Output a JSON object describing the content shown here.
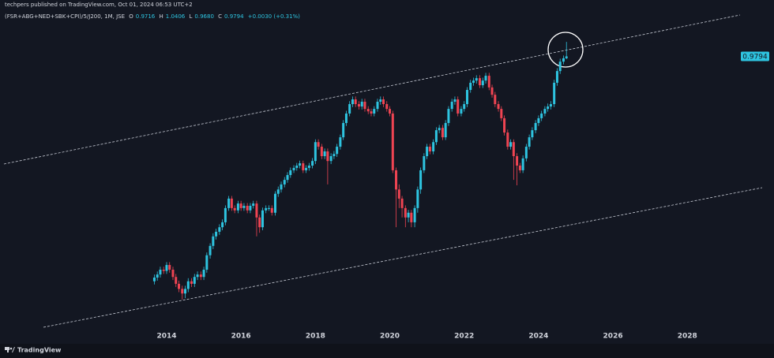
{
  "header": {
    "publisher": "techpers published on TradingView.com, Oct 01, 2024 06:53 UTC+2",
    "symbol": "(FSR+ABG+NED+SBK+CPI)/5/J200, 1M, JSE",
    "ohlc": [
      {
        "key": "O",
        "value": "0.9716"
      },
      {
        "key": "H",
        "value": "1.0406"
      },
      {
        "key": "L",
        "value": "0.9680"
      },
      {
        "key": "C",
        "value": "0.9794"
      }
    ],
    "change": "+0.0030 (+0.31%)"
  },
  "chart_data": {
    "type": "candlestick",
    "log_scale": true,
    "up_color": "#2ec4e0",
    "down_color": "#ef4452",
    "xlim": [
      2009.52,
      2030.33
    ],
    "xticks": [
      2014,
      2016,
      2018,
      2020,
      2022,
      2024,
      2026,
      2028
    ],
    "ylim": [
      0.31,
      1.24
    ],
    "x": [
      2013.67,
      2013.75,
      2013.83,
      2013.92,
      2014,
      2014.08,
      2014.17,
      2014.25,
      2014.33,
      2014.42,
      2014.5,
      2014.58,
      2014.67,
      2014.75,
      2014.83,
      2014.92,
      2015,
      2015.08,
      2015.17,
      2015.25,
      2015.33,
      2015.42,
      2015.5,
      2015.58,
      2015.67,
      2015.75,
      2015.83,
      2015.92,
      2016,
      2016.08,
      2016.17,
      2016.25,
      2016.33,
      2016.42,
      2016.5,
      2016.58,
      2016.67,
      2016.75,
      2016.83,
      2016.92,
      2017,
      2017.08,
      2017.17,
      2017.25,
      2017.33,
      2017.42,
      2017.5,
      2017.58,
      2017.67,
      2017.75,
      2017.83,
      2017.92,
      2018,
      2018.08,
      2018.17,
      2018.25,
      2018.33,
      2018.42,
      2018.5,
      2018.58,
      2018.67,
      2018.75,
      2018.83,
      2018.92,
      2019,
      2019.08,
      2019.17,
      2019.25,
      2019.33,
      2019.42,
      2019.5,
      2019.58,
      2019.67,
      2019.75,
      2019.83,
      2019.92,
      2020,
      2020.08,
      2020.17,
      2020.25,
      2020.33,
      2020.42,
      2020.5,
      2020.58,
      2020.67,
      2020.75,
      2020.83,
      2020.92,
      2021,
      2021.08,
      2021.17,
      2021.25,
      2021.33,
      2021.42,
      2021.5,
      2021.58,
      2021.67,
      2021.75,
      2021.83,
      2021.92,
      2022,
      2022.08,
      2022.17,
      2022.25,
      2022.33,
      2022.42,
      2022.5,
      2022.58,
      2022.67,
      2022.75,
      2022.83,
      2022.92,
      2023,
      2023.08,
      2023.17,
      2023.25,
      2023.33,
      2023.42,
      2023.5,
      2023.58,
      2023.67,
      2023.75,
      2023.83,
      2023.92,
      2024,
      2024.08,
      2024.17,
      2024.25,
      2024.33,
      2024.42,
      2024.5,
      2024.58,
      2024.67,
      2024.75
    ],
    "open": [
      0.382,
      0.388,
      0.393,
      0.401,
      0.399,
      0.409,
      0.401,
      0.389,
      0.378,
      0.37,
      0.363,
      0.37,
      0.382,
      0.378,
      0.389,
      0.393,
      0.389,
      0.401,
      0.426,
      0.443,
      0.461,
      0.47,
      0.479,
      0.489,
      0.519,
      0.54,
      0.519,
      0.514,
      0.529,
      0.519,
      0.524,
      0.514,
      0.524,
      0.529,
      0.499,
      0.479,
      0.514,
      0.519,
      0.519,
      0.509,
      0.551,
      0.561,
      0.573,
      0.584,
      0.596,
      0.608,
      0.614,
      0.62,
      0.626,
      0.608,
      0.614,
      0.62,
      0.632,
      0.684,
      0.671,
      0.645,
      0.658,
      0.632,
      0.645,
      0.651,
      0.671,
      0.698,
      0.741,
      0.771,
      0.802,
      0.818,
      0.802,
      0.794,
      0.81,
      0.786,
      0.778,
      0.771,
      0.786,
      0.81,
      0.818,
      0.802,
      0.786,
      0.771,
      0.608,
      0.561,
      0.54,
      0.519,
      0.499,
      0.509,
      0.489,
      0.519,
      0.561,
      0.608,
      0.645,
      0.671,
      0.658,
      0.684,
      0.719,
      0.726,
      0.698,
      0.741,
      0.786,
      0.81,
      0.818,
      0.771,
      0.786,
      0.802,
      0.851,
      0.877,
      0.885,
      0.894,
      0.868,
      0.885,
      0.903,
      0.86,
      0.834,
      0.802,
      0.786,
      0.756,
      0.712,
      0.671,
      0.684,
      0.645,
      0.62,
      0.608,
      0.639,
      0.671,
      0.698,
      0.719,
      0.741,
      0.756,
      0.771,
      0.786,
      0.794,
      0.802,
      0.877,
      0.921,
      0.958,
      0.9716
    ],
    "high": [
      0.393,
      0.398,
      0.406,
      0.406,
      0.414,
      0.414,
      0.406,
      0.394,
      0.383,
      0.375,
      0.375,
      0.387,
      0.387,
      0.394,
      0.398,
      0.398,
      0.406,
      0.431,
      0.448,
      0.467,
      0.476,
      0.485,
      0.495,
      0.525,
      0.546,
      0.546,
      0.525,
      0.535,
      0.535,
      0.53,
      0.53,
      0.53,
      0.535,
      0.535,
      0.505,
      0.52,
      0.525,
      0.525,
      0.525,
      0.557,
      0.568,
      0.58,
      0.591,
      0.603,
      0.615,
      0.621,
      0.627,
      0.633,
      0.633,
      0.621,
      0.627,
      0.64,
      0.692,
      0.692,
      0.679,
      0.666,
      0.666,
      0.653,
      0.659,
      0.679,
      0.706,
      0.75,
      0.78,
      0.812,
      0.828,
      0.828,
      0.812,
      0.82,
      0.82,
      0.795,
      0.787,
      0.795,
      0.82,
      0.828,
      0.828,
      0.812,
      0.795,
      0.78,
      0.615,
      0.573,
      0.546,
      0.525,
      0.515,
      0.515,
      0.525,
      0.568,
      0.615,
      0.653,
      0.679,
      0.679,
      0.692,
      0.728,
      0.735,
      0.735,
      0.75,
      0.795,
      0.82,
      0.828,
      0.828,
      0.795,
      0.812,
      0.861,
      0.888,
      0.896,
      0.905,
      0.905,
      0.896,
      0.914,
      0.914,
      0.87,
      0.844,
      0.812,
      0.795,
      0.765,
      0.721,
      0.692,
      0.692,
      0.653,
      0.627,
      0.647,
      0.679,
      0.706,
      0.728,
      0.75,
      0.765,
      0.78,
      0.795,
      0.804,
      0.812,
      0.888,
      0.932,
      0.97,
      0.983,
      1.0406
    ],
    "low": [
      0.377,
      0.383,
      0.388,
      0.394,
      0.394,
      0.396,
      0.384,
      0.373,
      0.365,
      0.354,
      0.356,
      0.365,
      0.373,
      0.373,
      0.384,
      0.384,
      0.384,
      0.396,
      0.42,
      0.437,
      0.455,
      0.464,
      0.473,
      0.483,
      0.513,
      0.513,
      0.508,
      0.508,
      0.513,
      0.513,
      0.508,
      0.508,
      0.518,
      0.461,
      0.468,
      0.473,
      0.508,
      0.513,
      0.503,
      0.503,
      0.544,
      0.554,
      0.566,
      0.577,
      0.589,
      0.601,
      0.607,
      0.613,
      0.601,
      0.601,
      0.607,
      0.613,
      0.624,
      0.663,
      0.637,
      0.637,
      0.573,
      0.624,
      0.637,
      0.643,
      0.663,
      0.69,
      0.732,
      0.762,
      0.792,
      0.792,
      0.784,
      0.784,
      0.777,
      0.769,
      0.762,
      0.762,
      0.777,
      0.8,
      0.792,
      0.777,
      0.762,
      0.601,
      0.479,
      0.519,
      0.499,
      0.479,
      0.489,
      0.479,
      0.479,
      0.509,
      0.551,
      0.601,
      0.637,
      0.65,
      0.65,
      0.676,
      0.71,
      0.69,
      0.69,
      0.732,
      0.777,
      0.8,
      0.762,
      0.762,
      0.777,
      0.792,
      0.841,
      0.866,
      0.874,
      0.858,
      0.858,
      0.874,
      0.85,
      0.824,
      0.792,
      0.777,
      0.747,
      0.703,
      0.663,
      0.663,
      0.584,
      0.571,
      0.601,
      0.601,
      0.631,
      0.663,
      0.69,
      0.71,
      0.732,
      0.747,
      0.762,
      0.777,
      0.784,
      0.792,
      0.866,
      0.91,
      0.947,
      0.968
    ],
    "close": [
      0.388,
      0.393,
      0.401,
      0.399,
      0.409,
      0.401,
      0.389,
      0.378,
      0.37,
      0.363,
      0.37,
      0.382,
      0.378,
      0.389,
      0.393,
      0.389,
      0.401,
      0.426,
      0.443,
      0.461,
      0.47,
      0.479,
      0.489,
      0.519,
      0.54,
      0.519,
      0.514,
      0.529,
      0.519,
      0.524,
      0.514,
      0.524,
      0.529,
      0.499,
      0.479,
      0.514,
      0.519,
      0.519,
      0.509,
      0.551,
      0.561,
      0.573,
      0.584,
      0.596,
      0.608,
      0.614,
      0.62,
      0.626,
      0.608,
      0.614,
      0.62,
      0.632,
      0.684,
      0.671,
      0.645,
      0.658,
      0.632,
      0.645,
      0.651,
      0.671,
      0.698,
      0.741,
      0.771,
      0.802,
      0.818,
      0.802,
      0.794,
      0.81,
      0.786,
      0.778,
      0.771,
      0.786,
      0.81,
      0.818,
      0.802,
      0.786,
      0.771,
      0.608,
      0.561,
      0.54,
      0.519,
      0.499,
      0.509,
      0.489,
      0.519,
      0.561,
      0.608,
      0.645,
      0.671,
      0.658,
      0.684,
      0.719,
      0.726,
      0.698,
      0.741,
      0.786,
      0.81,
      0.818,
      0.771,
      0.786,
      0.802,
      0.851,
      0.877,
      0.885,
      0.894,
      0.868,
      0.885,
      0.903,
      0.86,
      0.834,
      0.802,
      0.786,
      0.756,
      0.712,
      0.671,
      0.684,
      0.645,
      0.62,
      0.608,
      0.639,
      0.671,
      0.698,
      0.719,
      0.741,
      0.756,
      0.771,
      0.786,
      0.794,
      0.802,
      0.877,
      0.921,
      0.958,
      0.9716,
      0.9794
    ]
  },
  "footer": {
    "brand": "TradingView"
  }
}
